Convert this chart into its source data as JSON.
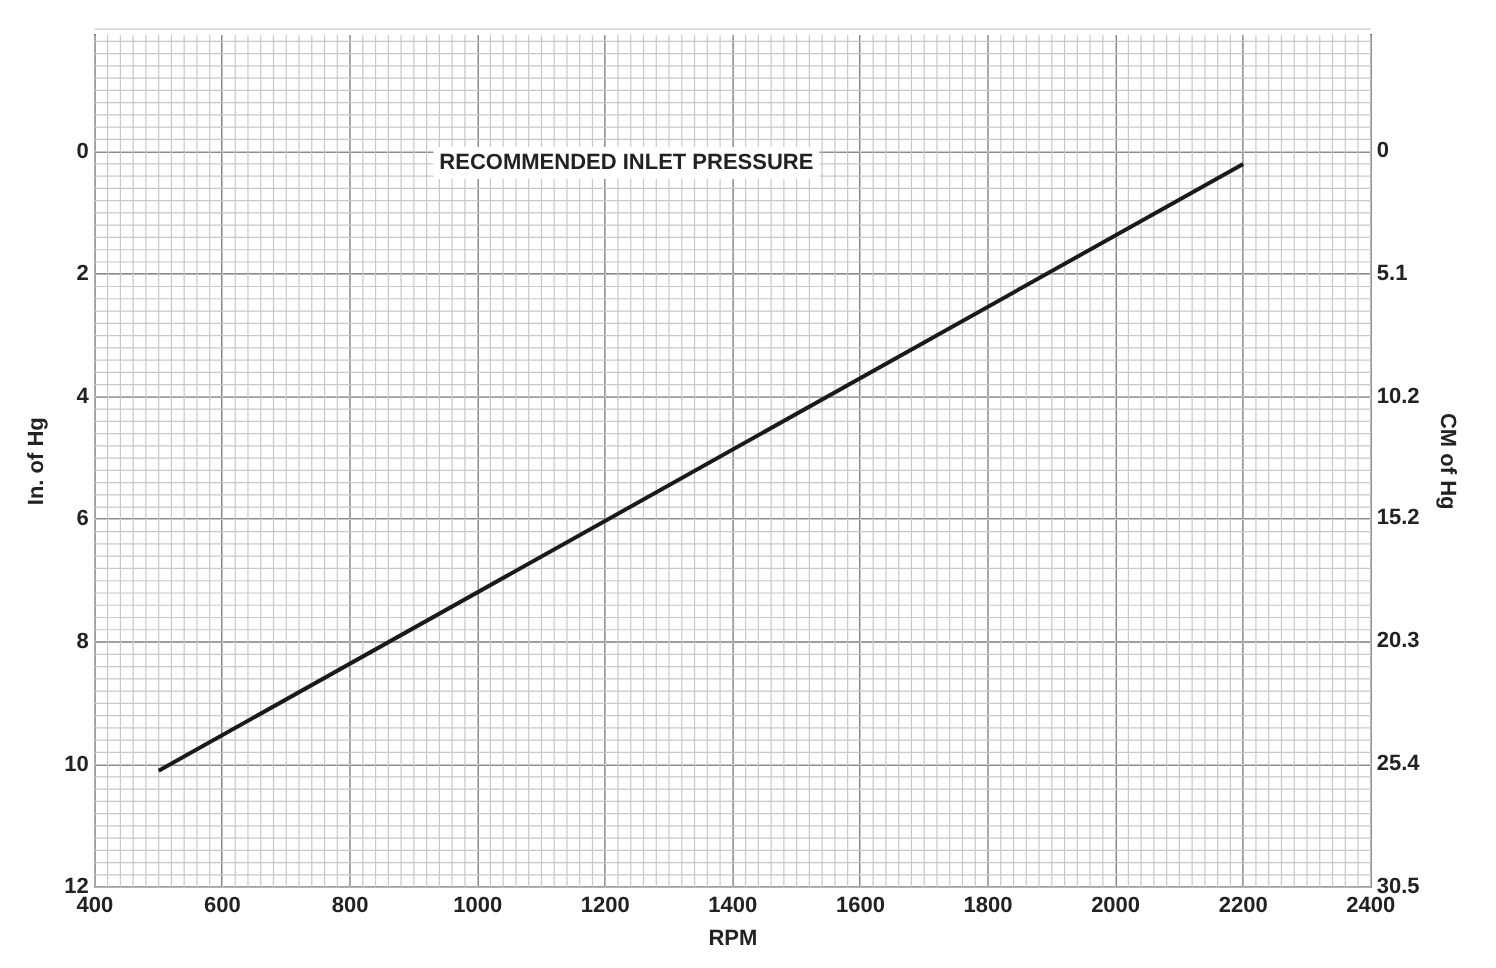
{
  "chart_data": {
    "type": "line",
    "title": "RECOMMENDED INLET PRESSURE",
    "xlabel": "RPM",
    "ylabel": "In. of Hg",
    "y2label": "CM of Hg",
    "x": [
      500,
      2200
    ],
    "series": [
      {
        "color": "#1a1a1a",
        "values": [
          10.1,
          0.2
        ]
      }
    ],
    "xlim": [
      400,
      2400
    ],
    "xticks": [
      400,
      600,
      800,
      1000,
      1200,
      1400,
      1600,
      1800,
      2000,
      2200,
      2400
    ],
    "ylim": [
      12,
      -1.9
    ],
    "yticks": [
      0,
      2,
      4,
      6,
      8,
      10,
      12
    ],
    "y2lim": [
      30.5,
      -4.8
    ],
    "y2ticks": [
      0,
      5.1,
      10.2,
      15.2,
      20.3,
      25.4,
      30.5
    ],
    "grid": true,
    "legend": false,
    "marker": "none",
    "line_style": "solid"
  }
}
